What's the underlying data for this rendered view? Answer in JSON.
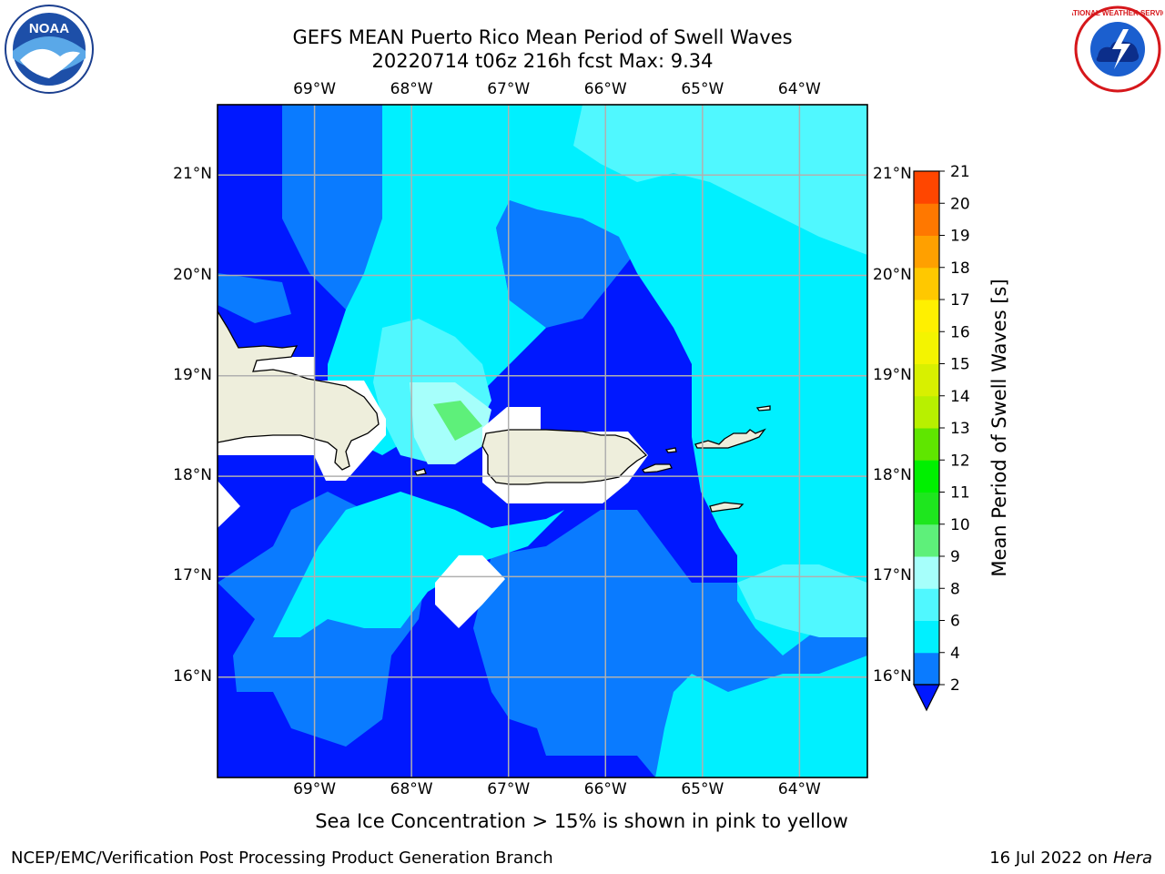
{
  "title": {
    "line1": "GEFS MEAN Puerto Rico Mean Period of Swell Waves",
    "line2": "20220714 t06z 216h fcst   Max: 9.34"
  },
  "axes": {
    "lon_ticks": [
      "69°W",
      "68°W",
      "67°W",
      "66°W",
      "65°W",
      "64°W"
    ],
    "lat_ticks": [
      "21°N",
      "20°N",
      "19°N",
      "18°N",
      "17°N",
      "16°N"
    ],
    "lon_range": [
      -70.0,
      -63.3
    ],
    "lat_range": [
      15.0,
      21.7
    ]
  },
  "colorbar": {
    "label": "Mean Period of Swell Waves [s]",
    "ticks": [
      "2",
      "4",
      "6",
      "8",
      "9",
      "10",
      "11",
      "12",
      "13",
      "14",
      "15",
      "16",
      "17",
      "18",
      "19",
      "20",
      "21"
    ],
    "colors": [
      "#0018ff",
      "#0a7bff",
      "#00f0ff",
      "#50f8ff",
      "#a6fffb",
      "#5ef07a",
      "#1ee61e",
      "#00f000",
      "#5fe600",
      "#b8f000",
      "#d8f000",
      "#f4f400",
      "#fff000",
      "#ffc800",
      "#ffa000",
      "#ff7800",
      "#ff4600",
      "#ff1000"
    ]
  },
  "note": "Sea Ice Concentration > 15% is shown in pink to yellow",
  "footer": {
    "left": "NCEP/EMC/Verification Post Processing Product Generation Branch",
    "right_prefix": "16 Jul 2022 on ",
    "right_machine": "Hera"
  },
  "logos": {
    "noaa": "NOAA",
    "nws": "NATIONAL WEATHER SERVICE"
  }
}
